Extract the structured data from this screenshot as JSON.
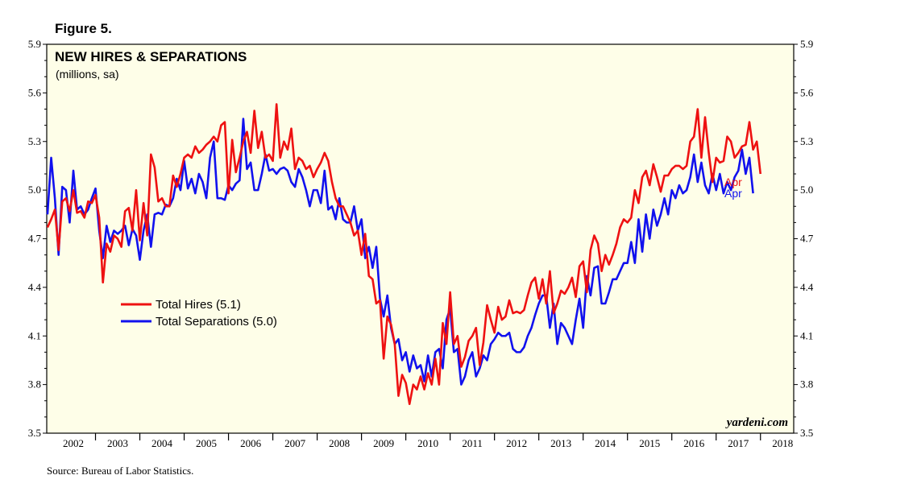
{
  "figure_label": "Figure 5.",
  "source": "Source: Bureau of Labor Statistics.",
  "watermark": "yardeni.com",
  "colors": {
    "hires": "#ee1111",
    "separations": "#1111ee",
    "plot_bg": "#fefee8"
  },
  "chart_data": {
    "type": "line",
    "title": "NEW HIRES & SEPARATIONS",
    "subtitle": "(millions, sa)",
    "xlabel": "",
    "ylabel": "",
    "ylim": [
      3.5,
      5.9
    ],
    "xlim": [
      2001.9,
      2018.75
    ],
    "y_ticks": [
      "3.5",
      "3.8",
      "4.1",
      "4.4",
      "4.7",
      "5.0",
      "5.3",
      "5.6",
      "5.9"
    ],
    "x_tick_labels": [
      "2002",
      "2003",
      "2004",
      "2005",
      "2006",
      "2007",
      "2008",
      "2009",
      "2010",
      "2011",
      "2012",
      "2013",
      "2014",
      "2015",
      "2016",
      "2017",
      "2018"
    ],
    "x_start": 2001.917,
    "x_step_months": 1,
    "series": [
      {
        "name": "Total Hires",
        "legend": "Total Hires (5.1)",
        "end_label": "Apr",
        "values": [
          4.77,
          4.82,
          4.88,
          4.63,
          4.93,
          4.95,
          4.87,
          5.0,
          4.86,
          4.87,
          4.83,
          4.93,
          4.92,
          4.97,
          4.83,
          4.43,
          4.67,
          4.62,
          4.72,
          4.7,
          4.65,
          4.87,
          4.89,
          4.75,
          5.0,
          4.69,
          4.92,
          4.72,
          5.22,
          5.14,
          4.93,
          4.95,
          4.9,
          4.9,
          5.09,
          5.02,
          5.1,
          5.2,
          5.22,
          5.2,
          5.27,
          5.23,
          5.25,
          5.28,
          5.3,
          5.33,
          5.3,
          5.4,
          5.42,
          4.98,
          5.31,
          5.11,
          5.2,
          5.3,
          5.36,
          5.23,
          5.49,
          5.26,
          5.36,
          5.2,
          5.22,
          5.18,
          5.53,
          5.2,
          5.3,
          5.25,
          5.38,
          5.13,
          5.2,
          5.18,
          5.13,
          5.15,
          5.08,
          5.13,
          5.17,
          5.23,
          5.18,
          5.05,
          4.95,
          4.9,
          4.9,
          4.85,
          4.8,
          4.72,
          4.75,
          4.6,
          4.73,
          4.47,
          4.45,
          4.3,
          4.32,
          3.96,
          4.22,
          4.17,
          4.05,
          3.73,
          3.86,
          3.81,
          3.68,
          3.8,
          3.77,
          3.85,
          3.77,
          3.87,
          3.8,
          3.96,
          3.8,
          4.18,
          4.05,
          4.37,
          4.05,
          4.1,
          3.91,
          3.97,
          4.07,
          4.1,
          4.15,
          3.92,
          4.06,
          4.29,
          4.2,
          4.12,
          4.28,
          4.2,
          4.22,
          4.32,
          4.24,
          4.25,
          4.24,
          4.26,
          4.35,
          4.43,
          4.46,
          4.33,
          4.45,
          4.3,
          4.5,
          4.24,
          4.3,
          4.38,
          4.36,
          4.4,
          4.46,
          4.34,
          4.53,
          4.56,
          4.37,
          4.63,
          4.72,
          4.67,
          4.5,
          4.6,
          4.54,
          4.6,
          4.67,
          4.77,
          4.82,
          4.8,
          4.83,
          5.0,
          4.92,
          5.08,
          5.12,
          5.03,
          5.16,
          5.08,
          4.99,
          5.09,
          5.09,
          5.13,
          5.15,
          5.15,
          5.13,
          5.15,
          5.3,
          5.33,
          5.5,
          5.2,
          5.45,
          5.23,
          5.05,
          5.2,
          5.17,
          5.18,
          5.33,
          5.3,
          5.2,
          5.23,
          5.27,
          5.28,
          5.42,
          5.25,
          5.3,
          5.1
        ]
      },
      {
        "name": "Total Separations",
        "legend": "Total Separations (5.0)",
        "end_label": "Apr",
        "values": [
          4.85,
          5.2,
          4.95,
          4.6,
          5.02,
          5.0,
          4.8,
          5.12,
          4.88,
          4.9,
          4.85,
          4.88,
          4.95,
          5.01,
          4.75,
          4.58,
          4.78,
          4.68,
          4.75,
          4.73,
          4.75,
          4.78,
          4.66,
          4.76,
          4.72,
          4.57,
          4.75,
          4.85,
          4.65,
          4.85,
          4.86,
          4.85,
          4.91,
          4.9,
          4.95,
          5.07,
          5.0,
          5.18,
          5.01,
          5.07,
          4.98,
          5.1,
          5.05,
          4.95,
          5.2,
          5.3,
          4.95,
          4.95,
          4.94,
          5.03,
          5.0,
          5.04,
          5.06,
          5.44,
          5.13,
          5.17,
          5.0,
          5.0,
          5.1,
          5.22,
          5.12,
          5.13,
          5.1,
          5.13,
          5.14,
          5.12,
          5.05,
          5.02,
          5.13,
          5.08,
          5.0,
          4.9,
          5.0,
          5.0,
          4.92,
          5.12,
          4.88,
          4.9,
          4.82,
          4.95,
          4.82,
          4.8,
          4.8,
          4.9,
          4.75,
          4.82,
          4.58,
          4.65,
          4.52,
          4.65,
          4.33,
          4.22,
          4.35,
          4.15,
          4.05,
          4.08,
          3.95,
          4.0,
          3.88,
          3.98,
          3.9,
          3.92,
          3.82,
          3.98,
          3.85,
          4.0,
          4.02,
          3.9,
          4.2,
          4.27,
          4.0,
          4.02,
          3.8,
          3.85,
          3.95,
          4.0,
          3.85,
          3.9,
          3.98,
          3.95,
          4.05,
          4.08,
          4.12,
          4.1,
          4.1,
          4.12,
          4.02,
          4.0,
          4.0,
          4.03,
          4.1,
          4.15,
          4.23,
          4.3,
          4.35,
          4.35,
          4.15,
          4.3,
          4.05,
          4.18,
          4.15,
          4.1,
          4.05,
          4.2,
          4.33,
          4.15,
          4.47,
          4.35,
          4.52,
          4.53,
          4.3,
          4.3,
          4.37,
          4.45,
          4.45,
          4.5,
          4.55,
          4.55,
          4.68,
          4.55,
          4.82,
          4.62,
          4.85,
          4.7,
          4.88,
          4.78,
          4.85,
          4.95,
          4.85,
          5.0,
          4.95,
          5.03,
          4.98,
          5.0,
          5.08,
          5.22,
          5.05,
          5.17,
          5.03,
          4.98,
          5.1,
          5.0,
          5.1,
          4.98,
          5.05,
          5.0,
          5.08,
          5.12,
          5.25,
          5.1,
          5.2,
          4.98
        ]
      }
    ]
  }
}
